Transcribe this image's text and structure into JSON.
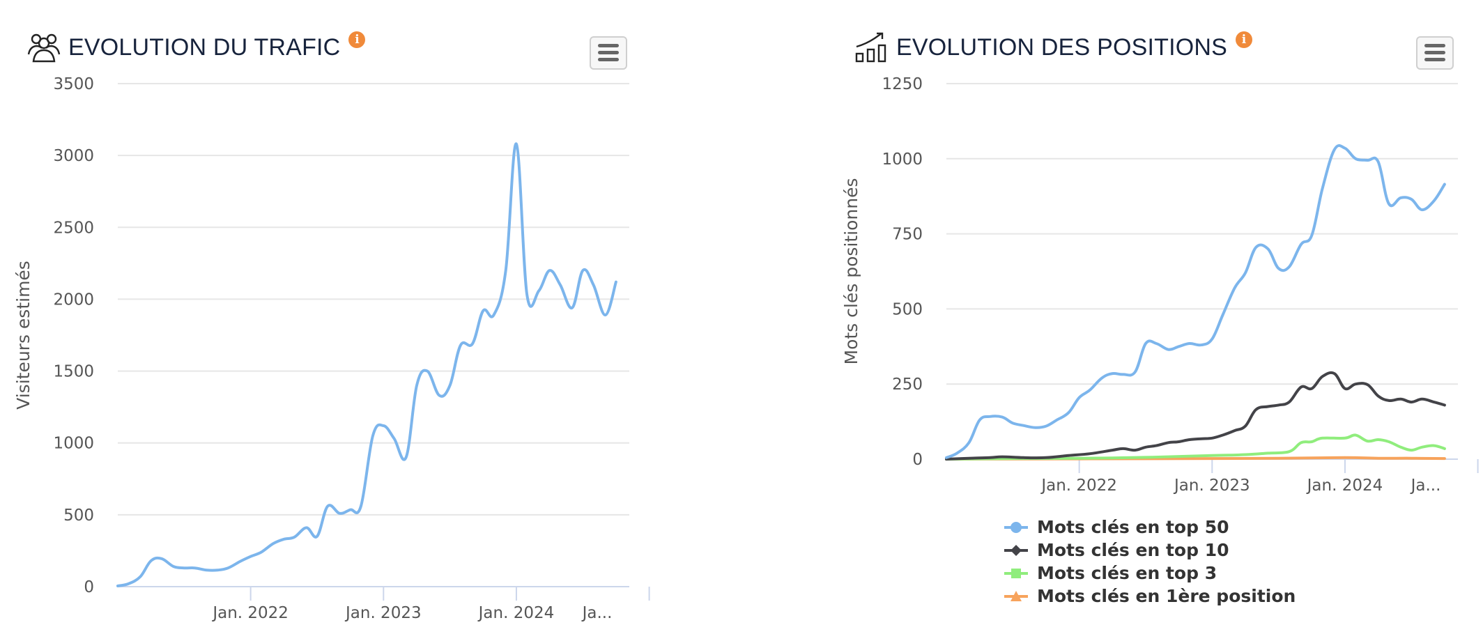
{
  "traffic_panel": {
    "title": "EVOLUTION DU TRAFIC",
    "info_badge": "i",
    "icon": "users-group-icon",
    "menu_icon": "hamburger-menu-icon"
  },
  "positions_panel": {
    "title": "EVOLUTION DES POSITIONS",
    "info_badge": "i",
    "icon": "growth-chart-icon",
    "menu_icon": "hamburger-menu-icon"
  },
  "chart_data": [
    {
      "type": "line",
      "ylabel": "Visiteurs estimés",
      "ylim": [
        0,
        3500
      ],
      "yticks": [
        0,
        500,
        1000,
        1500,
        2000,
        2500,
        3000,
        3500
      ],
      "xlim": [
        2021.0,
        2024.85
      ],
      "xticks": [
        {
          "label": "Jan. 2022",
          "x": 2022.0
        },
        {
          "label": "Jan. 2023",
          "x": 2023.0
        },
        {
          "label": "Jan. 2024",
          "x": 2024.0
        },
        {
          "label": "Ja...",
          "x": 2025.0
        }
      ],
      "grid": true,
      "series": [
        {
          "color": "#7cb5ec",
          "points": [
            [
              2021.0,
              5
            ],
            [
              2021.08,
              20
            ],
            [
              2021.17,
              70
            ],
            [
              2021.25,
              180
            ],
            [
              2021.33,
              195
            ],
            [
              2021.42,
              140
            ],
            [
              2021.5,
              130
            ],
            [
              2021.58,
              130
            ],
            [
              2021.67,
              115
            ],
            [
              2021.75,
              115
            ],
            [
              2021.83,
              130
            ],
            [
              2021.92,
              175
            ],
            [
              2022.0,
              210
            ],
            [
              2022.08,
              240
            ],
            [
              2022.17,
              300
            ],
            [
              2022.25,
              330
            ],
            [
              2022.33,
              345
            ],
            [
              2022.42,
              410
            ],
            [
              2022.5,
              350
            ],
            [
              2022.58,
              560
            ],
            [
              2022.67,
              510
            ],
            [
              2022.75,
              535
            ],
            [
              2022.83,
              560
            ],
            [
              2022.92,
              1050
            ],
            [
              2023.0,
              1120
            ],
            [
              2023.08,
              1030
            ],
            [
              2023.17,
              900
            ],
            [
              2023.25,
              1400
            ],
            [
              2023.33,
              1500
            ],
            [
              2023.42,
              1330
            ],
            [
              2023.5,
              1400
            ],
            [
              2023.58,
              1680
            ],
            [
              2023.67,
              1690
            ],
            [
              2023.75,
              1920
            ],
            [
              2023.83,
              1890
            ],
            [
              2023.92,
              2200
            ],
            [
              2024.0,
              3080
            ],
            [
              2024.08,
              2030
            ],
            [
              2024.17,
              2060
            ],
            [
              2024.25,
              2200
            ],
            [
              2024.33,
              2100
            ],
            [
              2024.42,
              1940
            ],
            [
              2024.5,
              2200
            ],
            [
              2024.58,
              2100
            ],
            [
              2024.67,
              1890
            ],
            [
              2024.75,
              2120
            ]
          ]
        }
      ]
    },
    {
      "type": "line",
      "ylabel": "Mots clés positionnés",
      "ylim": [
        0,
        1250
      ],
      "yticks": [
        0,
        250,
        500,
        750,
        1000,
        1250
      ],
      "xlim": [
        2021.0,
        2024.85
      ],
      "xticks": [
        {
          "label": "Jan. 2022",
          "x": 2022.0
        },
        {
          "label": "Jan. 2023",
          "x": 2023.0
        },
        {
          "label": "Jan. 2024",
          "x": 2024.0
        },
        {
          "label": "Ja...",
          "x": 2025.0
        }
      ],
      "grid": true,
      "legend_position": "bottom",
      "series": [
        {
          "name": "Mots clés en top 50",
          "color": "#7cb5ec",
          "marker": "circle",
          "points": [
            [
              2021.0,
              5
            ],
            [
              2021.08,
              20
            ],
            [
              2021.17,
              55
            ],
            [
              2021.25,
              130
            ],
            [
              2021.33,
              142
            ],
            [
              2021.42,
              140
            ],
            [
              2021.5,
              120
            ],
            [
              2021.58,
              112
            ],
            [
              2021.67,
              105
            ],
            [
              2021.75,
              110
            ],
            [
              2021.83,
              130
            ],
            [
              2021.92,
              155
            ],
            [
              2022.0,
              205
            ],
            [
              2022.08,
              230
            ],
            [
              2022.17,
              270
            ],
            [
              2022.25,
              285
            ],
            [
              2022.33,
              282
            ],
            [
              2022.42,
              290
            ],
            [
              2022.5,
              385
            ],
            [
              2022.58,
              385
            ],
            [
              2022.67,
              365
            ],
            [
              2022.75,
              375
            ],
            [
              2022.83,
              385
            ],
            [
              2022.92,
              380
            ],
            [
              2023.0,
              400
            ],
            [
              2023.08,
              480
            ],
            [
              2023.17,
              570
            ],
            [
              2023.25,
              620
            ],
            [
              2023.33,
              705
            ],
            [
              2023.42,
              700
            ],
            [
              2023.5,
              635
            ],
            [
              2023.58,
              640
            ],
            [
              2023.67,
              715
            ],
            [
              2023.75,
              745
            ],
            [
              2023.83,
              900
            ],
            [
              2023.92,
              1030
            ],
            [
              2024.0,
              1035
            ],
            [
              2024.08,
              1000
            ],
            [
              2024.17,
              995
            ],
            [
              2024.25,
              990
            ],
            [
              2024.33,
              850
            ],
            [
              2024.42,
              870
            ],
            [
              2024.5,
              865
            ],
            [
              2024.58,
              830
            ],
            [
              2024.67,
              860
            ],
            [
              2024.75,
              915
            ]
          ]
        },
        {
          "name": "Mots clés en top 10",
          "color": "#434348",
          "marker": "diamond",
          "points": [
            [
              2021.0,
              0
            ],
            [
              2021.17,
              3
            ],
            [
              2021.33,
              5
            ],
            [
              2021.42,
              8
            ],
            [
              2021.58,
              5
            ],
            [
              2021.75,
              5
            ],
            [
              2021.92,
              12
            ],
            [
              2022.08,
              18
            ],
            [
              2022.25,
              30
            ],
            [
              2022.33,
              35
            ],
            [
              2022.42,
              30
            ],
            [
              2022.5,
              40
            ],
            [
              2022.58,
              45
            ],
            [
              2022.67,
              55
            ],
            [
              2022.75,
              58
            ],
            [
              2022.83,
              65
            ],
            [
              2022.92,
              68
            ],
            [
              2023.0,
              70
            ],
            [
              2023.08,
              80
            ],
            [
              2023.17,
              95
            ],
            [
              2023.25,
              110
            ],
            [
              2023.33,
              165
            ],
            [
              2023.42,
              175
            ],
            [
              2023.5,
              180
            ],
            [
              2023.58,
              190
            ],
            [
              2023.67,
              240
            ],
            [
              2023.75,
              235
            ],
            [
              2023.83,
              275
            ],
            [
              2023.92,
              285
            ],
            [
              2024.0,
              235
            ],
            [
              2024.08,
              250
            ],
            [
              2024.17,
              248
            ],
            [
              2024.25,
              210
            ],
            [
              2024.33,
              195
            ],
            [
              2024.42,
              200
            ],
            [
              2024.5,
              190
            ],
            [
              2024.58,
              200
            ],
            [
              2024.67,
              190
            ],
            [
              2024.75,
              180
            ]
          ]
        },
        {
          "name": "Mots clés en top 3",
          "color": "#90ed7d",
          "marker": "square",
          "points": [
            [
              2021.0,
              0
            ],
            [
              2021.5,
              2
            ],
            [
              2022.0,
              3
            ],
            [
              2022.5,
              6
            ],
            [
              2023.0,
              12
            ],
            [
              2023.25,
              15
            ],
            [
              2023.42,
              20
            ],
            [
              2023.58,
              25
            ],
            [
              2023.67,
              55
            ],
            [
              2023.75,
              58
            ],
            [
              2023.83,
              70
            ],
            [
              2024.0,
              70
            ],
            [
              2024.08,
              80
            ],
            [
              2024.17,
              60
            ],
            [
              2024.25,
              65
            ],
            [
              2024.33,
              58
            ],
            [
              2024.42,
              40
            ],
            [
              2024.5,
              30
            ],
            [
              2024.58,
              40
            ],
            [
              2024.67,
              45
            ],
            [
              2024.75,
              35
            ]
          ]
        },
        {
          "name": "Mots clés en 1ère position",
          "color": "#f7a35c",
          "marker": "triangle",
          "points": [
            [
              2021.0,
              0
            ],
            [
              2022.0,
              1
            ],
            [
              2023.0,
              2
            ],
            [
              2023.5,
              3
            ],
            [
              2024.0,
              5
            ],
            [
              2024.25,
              3
            ],
            [
              2024.5,
              3
            ],
            [
              2024.75,
              2
            ]
          ]
        }
      ]
    }
  ]
}
